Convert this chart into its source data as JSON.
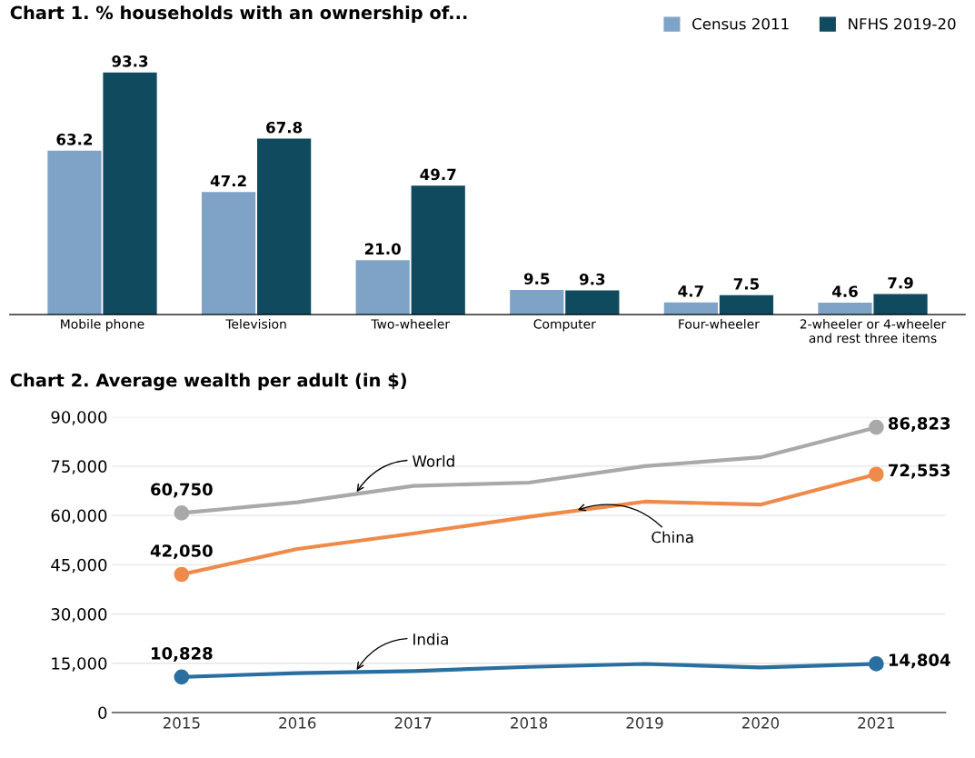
{
  "chart_data": [
    {
      "type": "bar",
      "title": "Chart 1. % households with an ownership of...",
      "categories": [
        "Mobile phone",
        "Television",
        "Two-wheeler",
        "Computer",
        "Four-wheeler",
        "2-wheeler or 4-wheeler\nand rest three items"
      ],
      "series": [
        {
          "name": "Census 2011",
          "color": "#7fa3c6",
          "values": [
            63.2,
            47.2,
            21.0,
            9.5,
            4.7,
            4.6
          ],
          "value_labels": [
            "63.2",
            "47.2",
            "21.0",
            "9.5",
            "4.7",
            "4.6"
          ]
        },
        {
          "name": "NFHS 2019-20",
          "color": "#0f4a5e",
          "values": [
            93.3,
            67.8,
            49.7,
            9.3,
            7.5,
            7.9
          ],
          "value_labels": [
            "93.3",
            "67.8",
            "49.7",
            "9.3",
            "7.5",
            "7.9"
          ]
        }
      ],
      "legend": "top right",
      "tick_labels": "x"
    },
    {
      "type": "line",
      "title": "Chart 2. Average wealth per adult (in $)",
      "x": [
        2015,
        2016,
        2017,
        2018,
        2019,
        2020,
        2021
      ],
      "series": [
        {
          "name": "World",
          "color": "#a9a9a9",
          "values": [
            60750,
            64000,
            69000,
            70000,
            75000,
            77700,
            86823
          ],
          "value_labels": [
            "60,750",
            null,
            null,
            null,
            null,
            null,
            "86,823"
          ]
        },
        {
          "name": "China",
          "color": "#f08a4b",
          "values": [
            42050,
            49800,
            54500,
            59600,
            64200,
            63300,
            72553
          ],
          "value_labels": [
            "42,050",
            null,
            null,
            null,
            null,
            null,
            "72,553"
          ]
        },
        {
          "name": "India",
          "color": "#2a6fa0",
          "values": [
            10828,
            12000,
            12600,
            13900,
            14800,
            13700,
            14804
          ],
          "value_labels": [
            "10,828",
            null,
            null,
            null,
            null,
            null,
            "14,804"
          ]
        }
      ],
      "xlim": [
        2014.4,
        2021.6
      ],
      "xticks": [
        2015,
        2016,
        2017,
        2018,
        2019,
        2020,
        2021
      ],
      "ylim": [
        0,
        90000
      ],
      "yticks": [
        {
          "value": 0,
          "label": "0"
        },
        {
          "value": 15000,
          "label": "15,000"
        },
        {
          "value": 30000,
          "label": "30,000"
        },
        {
          "value": 45000,
          "label": "45,000"
        },
        {
          "value": 60000,
          "label": "60,000"
        },
        {
          "value": 75000,
          "label": "75,000"
        },
        {
          "value": 90000,
          "label": "90,000"
        }
      ],
      "grid": "y",
      "legend": false
    }
  ]
}
